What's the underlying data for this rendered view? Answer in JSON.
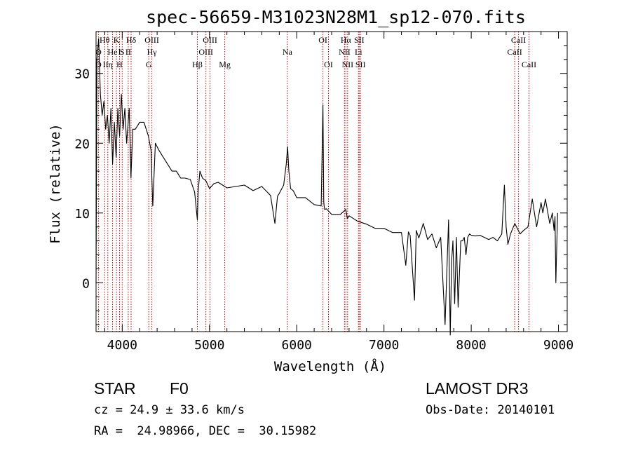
{
  "chart_data": {
    "type": "line",
    "title": "spec-56659-M31023N28M1_sp12-070.fits",
    "xlabel": "Wavelength (Å)",
    "ylabel": "Flux (relative)",
    "xlim": [
      3700,
      9100
    ],
    "ylim": [
      -7,
      36
    ],
    "xticks": [
      4000,
      5000,
      6000,
      7000,
      8000,
      9000
    ],
    "xtick_labels": [
      "4000",
      "5000",
      "6000",
      "7000",
      "8000",
      "9000"
    ],
    "yticks": [
      0,
      10,
      20,
      30
    ],
    "ytick_labels": [
      "0",
      "10",
      "20",
      "30"
    ],
    "grid": false,
    "series": [
      {
        "name": "flux",
        "color": "#000000",
        "x": [
          3700,
          3710,
          3730,
          3750,
          3770,
          3790,
          3810,
          3830,
          3850,
          3870,
          3890,
          3910,
          3930,
          3950,
          3970,
          3990,
          4010,
          4030,
          4050,
          4080,
          4100,
          4120,
          4150,
          4200,
          4250,
          4300,
          4330,
          4340,
          4350,
          4380,
          4420,
          4470,
          4520,
          4570,
          4620,
          4670,
          4720,
          4780,
          4830,
          4861,
          4870,
          4890,
          4920,
          4960,
          5000,
          5050,
          5100,
          5200,
          5300,
          5400,
          5500,
          5600,
          5700,
          5750,
          5780,
          5800,
          5850,
          5880,
          5895,
          5910,
          5930,
          5960,
          6000,
          6100,
          6200,
          6280,
          6300,
          6310,
          6320,
          6340,
          6400,
          6500,
          6563,
          6580,
          6600,
          6700,
          6800,
          6900,
          7000,
          7100,
          7200,
          7250,
          7280,
          7300,
          7350,
          7370,
          7400,
          7450,
          7500,
          7550,
          7600,
          7650,
          7700,
          7740,
          7760,
          7775,
          7790,
          7810,
          7830,
          7850,
          7880,
          7900,
          7920,
          7940,
          7960,
          7980,
          8000,
          8050,
          8100,
          8150,
          8200,
          8250,
          8300,
          8350,
          8380,
          8400,
          8420,
          8450,
          8500,
          8540,
          8560,
          8600,
          8650,
          8700,
          8750,
          8800,
          8820,
          8850,
          8900,
          8930,
          8950,
          8960,
          8970,
          8990
        ],
        "values": [
          0,
          32,
          35,
          27,
          24,
          26,
          22,
          24,
          20,
          25,
          17,
          23,
          18,
          25,
          21,
          27,
          22,
          25,
          20,
          25,
          15,
          22,
          22,
          23,
          23,
          21,
          19,
          15,
          11,
          20,
          19,
          18,
          17,
          16,
          16,
          15,
          15,
          14.8,
          13,
          9,
          13,
          16,
          15,
          14.6,
          13.5,
          14.2,
          14.4,
          13.6,
          13.8,
          14,
          13.2,
          13.8,
          12.5,
          8.5,
          12.4,
          12.8,
          14,
          17,
          19.5,
          16,
          13.5,
          13.2,
          12.2,
          12.2,
          11.2,
          11,
          25.5,
          11.5,
          10.5,
          10.6,
          9.8,
          9.8,
          10.5,
          9.2,
          9.6,
          8.8,
          8.4,
          7.8,
          7.8,
          7.2,
          7.2,
          2.5,
          7.3,
          6.8,
          -2.5,
          7.5,
          6.4,
          8.5,
          6.2,
          7,
          5,
          6.5,
          -6,
          9,
          -7.5,
          3,
          6,
          -3,
          6.5,
          -3.5,
          6,
          6,
          6.5,
          4,
          6.5,
          7,
          6.8,
          6.7,
          6.8,
          6.5,
          6.2,
          6.5,
          6,
          7,
          14,
          8,
          5.5,
          7,
          8.5,
          7.5,
          7,
          7.5,
          8,
          12,
          8,
          11.5,
          10,
          12,
          8.5,
          10,
          7.5,
          9.5,
          0,
          10
        ]
      }
    ],
    "lines": [
      {
        "label": "Hθ",
        "wavelength": 3798,
        "row": 1
      },
      {
        "label": "O",
        "wavelength": 3727,
        "row": 2
      },
      {
        "label": "O",
        "wavelength": 3727,
        "row": 3
      },
      {
        "label": "IIη",
        "wavelength": 3835,
        "row": 3
      },
      {
        "label": "He",
        "wavelength": 3889,
        "row": 2
      },
      {
        "label": "K",
        "wavelength": 3934,
        "row": 1
      },
      {
        "label": "H",
        "wavelength": 3969,
        "row": 3
      },
      {
        "label": "I",
        "wavelength": 3969,
        "row": 2
      },
      {
        "label": "S",
        "wavelength": 4000,
        "row": 2
      },
      {
        "label": "II",
        "wavelength": 4069,
        "row": 2
      },
      {
        "label": "Hδ",
        "wavelength": 4102,
        "row": 1
      },
      {
        "label": "OIII",
        "wavelength": 4340,
        "row": 1
      },
      {
        "label": "Hγ",
        "wavelength": 4340,
        "row": 2
      },
      {
        "label": "G",
        "wavelength": 4304,
        "row": 3
      },
      {
        "label": "Hβ",
        "wavelength": 4861,
        "row": 3
      },
      {
        "label": "OIII",
        "wavelength": 5007,
        "row": 1
      },
      {
        "label": "OIII",
        "wavelength": 4959,
        "row": 2
      },
      {
        "label": "Mg",
        "wavelength": 5175,
        "row": 3
      },
      {
        "label": "Na",
        "wavelength": 5893,
        "row": 2
      },
      {
        "label": "OI",
        "wavelength": 6300,
        "row": 1
      },
      {
        "label": "OI",
        "wavelength": 6364,
        "row": 3
      },
      {
        "label": "Hα",
        "wavelength": 6563,
        "row": 1
      },
      {
        "label": "SII",
        "wavelength": 6716,
        "row": 1
      },
      {
        "label": "NII",
        "wavelength": 6548,
        "row": 2
      },
      {
        "label": "Li",
        "wavelength": 6708,
        "row": 2
      },
      {
        "label": "NII",
        "wavelength": 6583,
        "row": 3
      },
      {
        "label": "SII",
        "wavelength": 6731,
        "row": 3
      },
      {
        "label": "CaII",
        "wavelength": 8542,
        "row": 1
      },
      {
        "label": "CaII",
        "wavelength": 8498,
        "row": 2
      },
      {
        "label": "CaII",
        "wavelength": 8662,
        "row": 3
      }
    ]
  },
  "info": {
    "class": "STAR",
    "subclass": "F0",
    "survey": "LAMOST DR3",
    "cz": "cz = 24.9 ± 33.6 km/s",
    "obs_date": "Obs-Date: 20140101",
    "coords": "RA =  24.98966, DEC =  30.15982"
  },
  "colors": {
    "line": "#000000",
    "marker": "#cc0000"
  }
}
